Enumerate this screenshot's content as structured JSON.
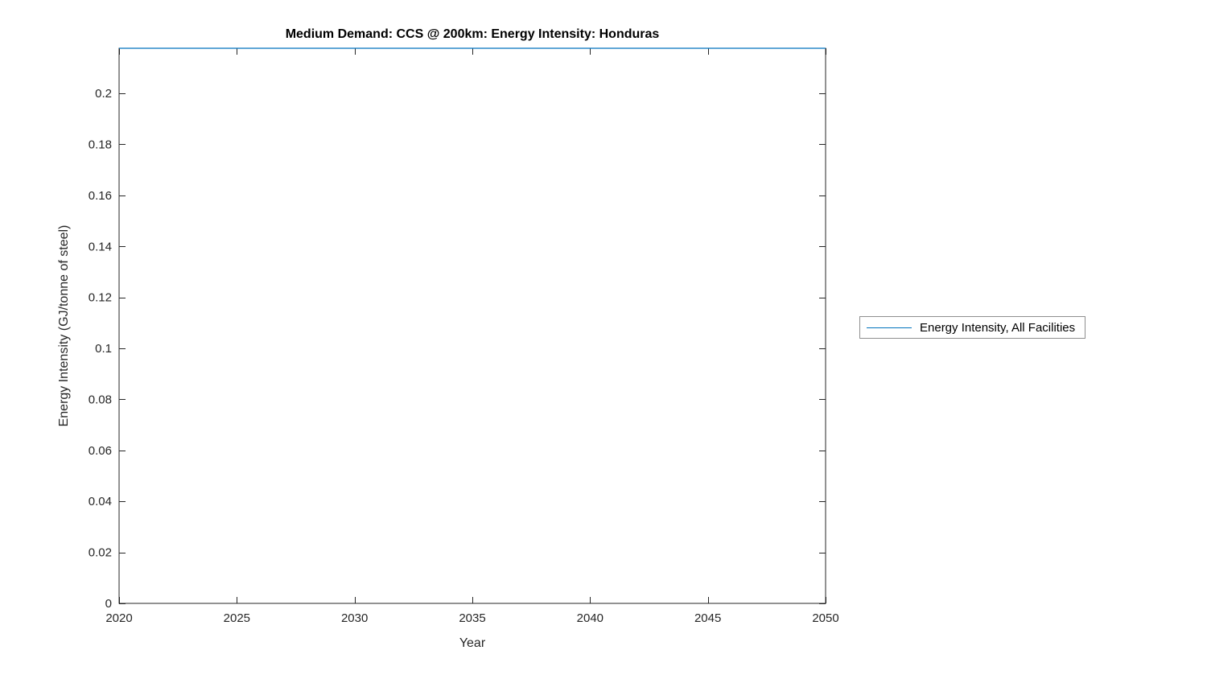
{
  "chart_data": {
    "type": "line",
    "title": "Medium Demand: CCS @ 200km: Energy Intensity: Honduras",
    "xlabel": "Year",
    "ylabel": "Energy Intensity (GJ/tonne of steel)",
    "xlim": [
      2020,
      2050
    ],
    "ylim": [
      0,
      0.2177
    ],
    "xticks": [
      2020,
      2025,
      2030,
      2035,
      2040,
      2045,
      2050
    ],
    "xtick_labels": [
      "2020",
      "2025",
      "2030",
      "2035",
      "2040",
      "2045",
      "2050"
    ],
    "yticks": [
      0,
      0.02,
      0.04,
      0.06,
      0.08,
      0.1,
      0.12,
      0.14,
      0.16,
      0.18,
      0.2
    ],
    "ytick_labels": [
      "0",
      "0.02",
      "0.04",
      "0.06",
      "0.08",
      "0.1",
      "0.12",
      "0.14",
      "0.16",
      "0.18",
      "0.2"
    ],
    "grid": false,
    "axis_color": "#262626",
    "legend": {
      "position": "right-outside",
      "entries": [
        "Energy Intensity, All Facilities"
      ]
    },
    "series": [
      {
        "name": "Energy Intensity, All Facilities",
        "color": "#0072BD",
        "x": [
          2020,
          2025,
          2030,
          2035,
          2040,
          2045,
          2050
        ],
        "values": [
          0.2177,
          0.2177,
          0.2177,
          0.2177,
          0.2177,
          0.2177,
          0.2177
        ]
      }
    ]
  }
}
